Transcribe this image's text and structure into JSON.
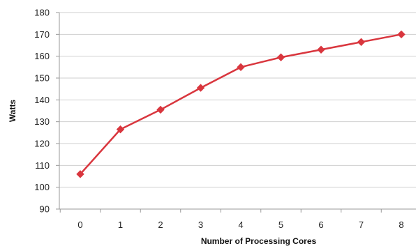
{
  "chart_data": {
    "type": "line",
    "xlabel": "Number of Processing Cores",
    "ylabel": "Watts",
    "x": [
      0,
      1,
      2,
      3,
      4,
      5,
      6,
      7,
      8
    ],
    "xlim": [
      0,
      8
    ],
    "ylim": [
      90,
      180
    ],
    "yticks": [
      90,
      100,
      110,
      120,
      130,
      140,
      150,
      160,
      170,
      180
    ],
    "grid": true,
    "series": [
      {
        "values": [
          106,
          126.5,
          135.5,
          145.5,
          155,
          159.5,
          163,
          166.5,
          170
        ],
        "color": "#d9363e",
        "marker": "diamond"
      }
    ]
  }
}
